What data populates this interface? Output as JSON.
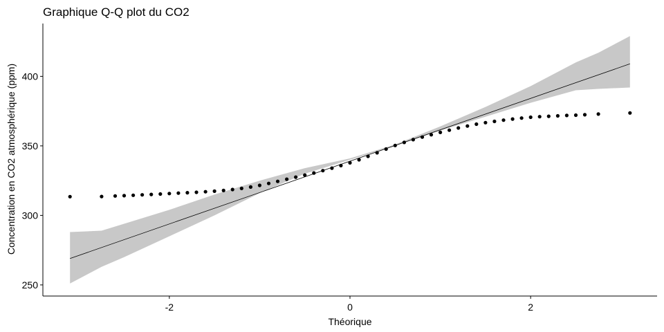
{
  "chart_data": {
    "type": "scatter",
    "title": "Graphique Q-Q plot du CO2",
    "xlabel": "Théorique",
    "ylabel": "Concentration en CO2 atmosphérique (ppm)",
    "xlim": [
      -3.4,
      3.4
    ],
    "ylim": [
      242,
      438
    ],
    "xticks": [
      -2,
      0,
      2
    ],
    "xtick_labels": [
      "-2",
      "0",
      "2"
    ],
    "yticks": [
      250,
      300,
      350,
      400
    ],
    "ytick_labels": [
      "250",
      "300",
      "350",
      "400"
    ],
    "grid": false,
    "legend": "none",
    "colors": {
      "points": "#000000",
      "line": "#000000",
      "band": "#c8c8c8"
    },
    "reference_line": {
      "x": [
        -3.1,
        3.1
      ],
      "y": [
        269,
        409
      ]
    },
    "confidence_band": {
      "x": [
        -3.1,
        -2.75,
        -2.5,
        -2.0,
        -1.5,
        -1.0,
        -0.5,
        0.0,
        0.5,
        1.0,
        1.5,
        2.0,
        2.5,
        2.75,
        3.1
      ],
      "lower": [
        251,
        263,
        270,
        285,
        300,
        316,
        330,
        340,
        350,
        361,
        371,
        381,
        390,
        391,
        392
      ],
      "upper": [
        288,
        289,
        294,
        304,
        315,
        325,
        334,
        341,
        351,
        364,
        378,
        393,
        410,
        417,
        429
      ]
    },
    "points": {
      "x": [
        -3.1,
        -2.75,
        -2.6,
        -2.5,
        -2.4,
        -2.3,
        -2.2,
        -2.1,
        -2.0,
        -1.9,
        -1.8,
        -1.7,
        -1.6,
        -1.5,
        -1.4,
        -1.3,
        -1.2,
        -1.1,
        -1.0,
        -0.9,
        -0.8,
        -0.7,
        -0.6,
        -0.5,
        -0.4,
        -0.3,
        -0.2,
        -0.1,
        0.0,
        0.1,
        0.2,
        0.3,
        0.4,
        0.5,
        0.6,
        0.7,
        0.8,
        0.9,
        1.0,
        1.1,
        1.2,
        1.3,
        1.4,
        1.5,
        1.6,
        1.7,
        1.8,
        1.9,
        2.0,
        2.1,
        2.2,
        2.3,
        2.4,
        2.5,
        2.6,
        2.75,
        3.1
      ],
      "y": [
        313.5,
        313.6,
        314,
        314.2,
        314.5,
        314.8,
        315.1,
        315.4,
        315.7,
        316,
        316.3,
        316.6,
        317,
        317.4,
        317.9,
        318.6,
        319.4,
        320.4,
        321.6,
        323,
        324.5,
        326,
        327.5,
        329,
        330.5,
        332.2,
        334,
        335.8,
        337.8,
        340,
        342.5,
        345,
        347.7,
        350.3,
        352.5,
        354.5,
        356.3,
        358,
        359.7,
        361.3,
        362.9,
        364.3,
        365.6,
        366.7,
        367.6,
        368.5,
        369.3,
        370,
        370.6,
        371,
        371.3,
        371.6,
        371.9,
        372.1,
        372.4,
        372.9,
        373.7
      ]
    }
  }
}
